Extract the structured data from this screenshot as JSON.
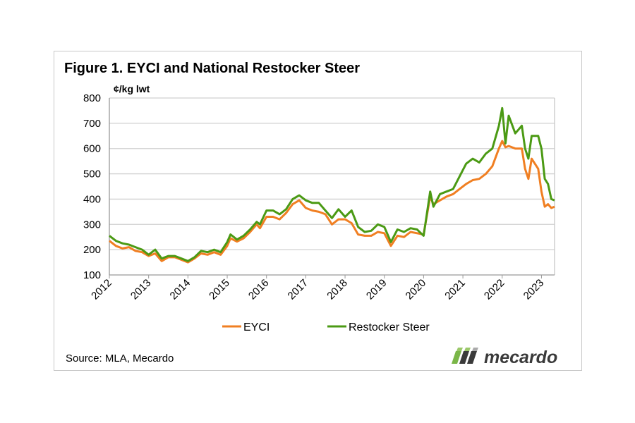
{
  "chart_data": {
    "type": "line",
    "title": "Figure 1. EYCI and National Restocker Steer",
    "ylabel": "¢/kg lwt",
    "xlabel": "",
    "ylim": [
      100,
      800
    ],
    "yticks": [
      "100",
      "200",
      "300",
      "400",
      "500",
      "600",
      "700",
      "800"
    ],
    "xticks": [
      "2012",
      "2013",
      "2014",
      "2015",
      "2016",
      "2017",
      "2018",
      "2019",
      "2020",
      "2021",
      "2022",
      "2023"
    ],
    "xlim": [
      "2012-01",
      "2023-05"
    ],
    "grid": true,
    "legend_position": "bottom",
    "series": [
      {
        "name": "EYCI",
        "color": "#f07f22",
        "x": [
          "2012-01",
          "2012-03",
          "2012-05",
          "2012-07",
          "2012-09",
          "2012-11",
          "2013-01",
          "2013-03",
          "2013-05",
          "2013-07",
          "2013-09",
          "2013-11",
          "2014-01",
          "2014-03",
          "2014-05",
          "2014-07",
          "2014-09",
          "2014-11",
          "2015-01",
          "2015-02",
          "2015-04",
          "2015-06",
          "2015-08",
          "2015-10",
          "2015-11",
          "2016-01",
          "2016-03",
          "2016-05",
          "2016-07",
          "2016-09",
          "2016-11",
          "2017-01",
          "2017-03",
          "2017-05",
          "2017-07",
          "2017-09",
          "2017-11",
          "2018-01",
          "2018-03",
          "2018-05",
          "2018-07",
          "2018-09",
          "2018-11",
          "2019-01",
          "2019-03",
          "2019-05",
          "2019-07",
          "2019-09",
          "2019-11",
          "2020-01",
          "2020-03",
          "2020-04",
          "2020-06",
          "2020-08",
          "2020-10",
          "2020-12",
          "2021-02",
          "2021-04",
          "2021-06",
          "2021-08",
          "2021-10",
          "2021-12",
          "2022-01",
          "2022-02",
          "2022-03",
          "2022-05",
          "2022-07",
          "2022-08",
          "2022-09",
          "2022-10",
          "2022-12",
          "2023-01",
          "2023-02",
          "2023-03",
          "2023-04",
          "2023-05"
        ],
        "values": [
          235,
          215,
          205,
          210,
          195,
          190,
          175,
          185,
          155,
          170,
          170,
          160,
          150,
          165,
          185,
          180,
          190,
          180,
          215,
          245,
          232,
          245,
          270,
          300,
          285,
          330,
          330,
          320,
          345,
          380,
          395,
          365,
          355,
          350,
          340,
          300,
          320,
          320,
          305,
          260,
          255,
          255,
          270,
          265,
          215,
          255,
          250,
          270,
          265,
          260,
          410,
          380,
          395,
          410,
          420,
          440,
          460,
          475,
          480,
          500,
          530,
          600,
          630,
          605,
          610,
          600,
          600,
          520,
          480,
          560,
          520,
          430,
          370,
          380,
          365,
          370
        ]
      },
      {
        "name": "Restocker Steer",
        "color": "#4b9a14",
        "x": [
          "2012-01",
          "2012-03",
          "2012-05",
          "2012-07",
          "2012-09",
          "2012-11",
          "2013-01",
          "2013-03",
          "2013-05",
          "2013-07",
          "2013-09",
          "2013-11",
          "2014-01",
          "2014-03",
          "2014-05",
          "2014-07",
          "2014-09",
          "2014-11",
          "2015-01",
          "2015-02",
          "2015-04",
          "2015-06",
          "2015-08",
          "2015-10",
          "2015-11",
          "2016-01",
          "2016-03",
          "2016-05",
          "2016-07",
          "2016-09",
          "2016-11",
          "2017-01",
          "2017-03",
          "2017-05",
          "2017-07",
          "2017-09",
          "2017-11",
          "2018-01",
          "2018-03",
          "2018-05",
          "2018-07",
          "2018-09",
          "2018-11",
          "2019-01",
          "2019-03",
          "2019-05",
          "2019-07",
          "2019-09",
          "2019-11",
          "2020-01",
          "2020-03",
          "2020-04",
          "2020-06",
          "2020-08",
          "2020-10",
          "2020-12",
          "2021-02",
          "2021-04",
          "2021-06",
          "2021-08",
          "2021-10",
          "2021-12",
          "2022-01",
          "2022-02",
          "2022-03",
          "2022-05",
          "2022-07",
          "2022-08",
          "2022-09",
          "2022-10",
          "2022-12",
          "2023-01",
          "2023-02",
          "2023-03",
          "2023-04",
          "2023-05"
        ],
        "values": [
          255,
          235,
          225,
          220,
          210,
          200,
          180,
          200,
          165,
          175,
          175,
          165,
          155,
          170,
          195,
          190,
          200,
          190,
          230,
          260,
          240,
          255,
          280,
          310,
          300,
          355,
          355,
          340,
          360,
          400,
          415,
          395,
          385,
          385,
          355,
          325,
          360,
          330,
          355,
          290,
          270,
          275,
          300,
          290,
          230,
          280,
          270,
          285,
          280,
          255,
          430,
          370,
          420,
          430,
          440,
          490,
          540,
          560,
          545,
          580,
          600,
          690,
          760,
          620,
          730,
          660,
          690,
          600,
          560,
          650,
          650,
          600,
          480,
          460,
          400,
          395
        ]
      }
    ]
  },
  "footer": {
    "source": "Source:  MLA, Mecardo",
    "logo_text": "mecardo"
  }
}
